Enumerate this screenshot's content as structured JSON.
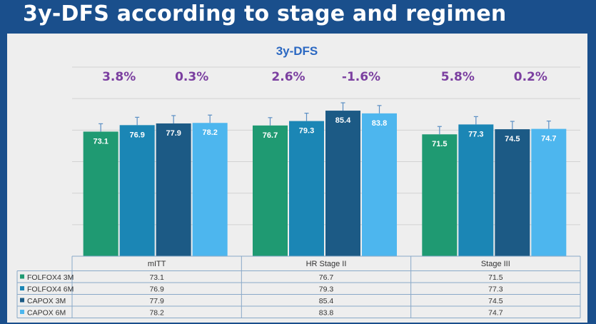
{
  "slide": {
    "title": "3y-DFS according to stage and regimen"
  },
  "chart_data": {
    "type": "bar",
    "title": "3y-DFS",
    "categories": [
      "mITT",
      "HR Stage II",
      "Stage III"
    ],
    "series": [
      {
        "name": "FOLFOX4 3M",
        "color": "#1f9a72",
        "values": [
          73.1,
          76.7,
          71.5
        ]
      },
      {
        "name": "FOLFOX4 6M",
        "color": "#1b86b5",
        "values": [
          76.9,
          79.3,
          77.3
        ]
      },
      {
        "name": "CAPOX 3M",
        "color": "#1c5a85",
        "values": [
          77.9,
          85.4,
          74.5
        ]
      },
      {
        "name": "CAPOX 6M",
        "color": "#4db6ee",
        "values": [
          78.2,
          83.8,
          74.7
        ]
      }
    ],
    "differences": [
      {
        "category": "mITT",
        "folfox4": "3.8%",
        "capox": "0.3%"
      },
      {
        "category": "HR Stage II",
        "folfox4": "2.6%",
        "capox": "-1.6%"
      },
      {
        "category": "Stage III",
        "folfox4": "5.8%",
        "capox": "0.2%"
      }
    ],
    "error_bars": true,
    "grid": true,
    "legend": "data-table-below",
    "table": {
      "rows": [
        {
          "label": "FOLFOX4 3M",
          "values": [
            "73.1",
            "76.7",
            "71.5"
          ]
        },
        {
          "label": "FOLFOX4 6M",
          "values": [
            "76.9",
            "79.3",
            "77.3"
          ]
        },
        {
          "label": "CAPOX 3M",
          "values": [
            "77.9",
            "85.4",
            "74.5"
          ]
        },
        {
          "label": "CAPOX 6M",
          "values": [
            "78.2",
            "83.8",
            "74.7"
          ]
        }
      ]
    },
    "colors": {
      "diff_label": "#7b3fa0",
      "title": "#2b68c2",
      "panel": "#eeeeee",
      "slide_bg": "#1a4f8c"
    }
  }
}
